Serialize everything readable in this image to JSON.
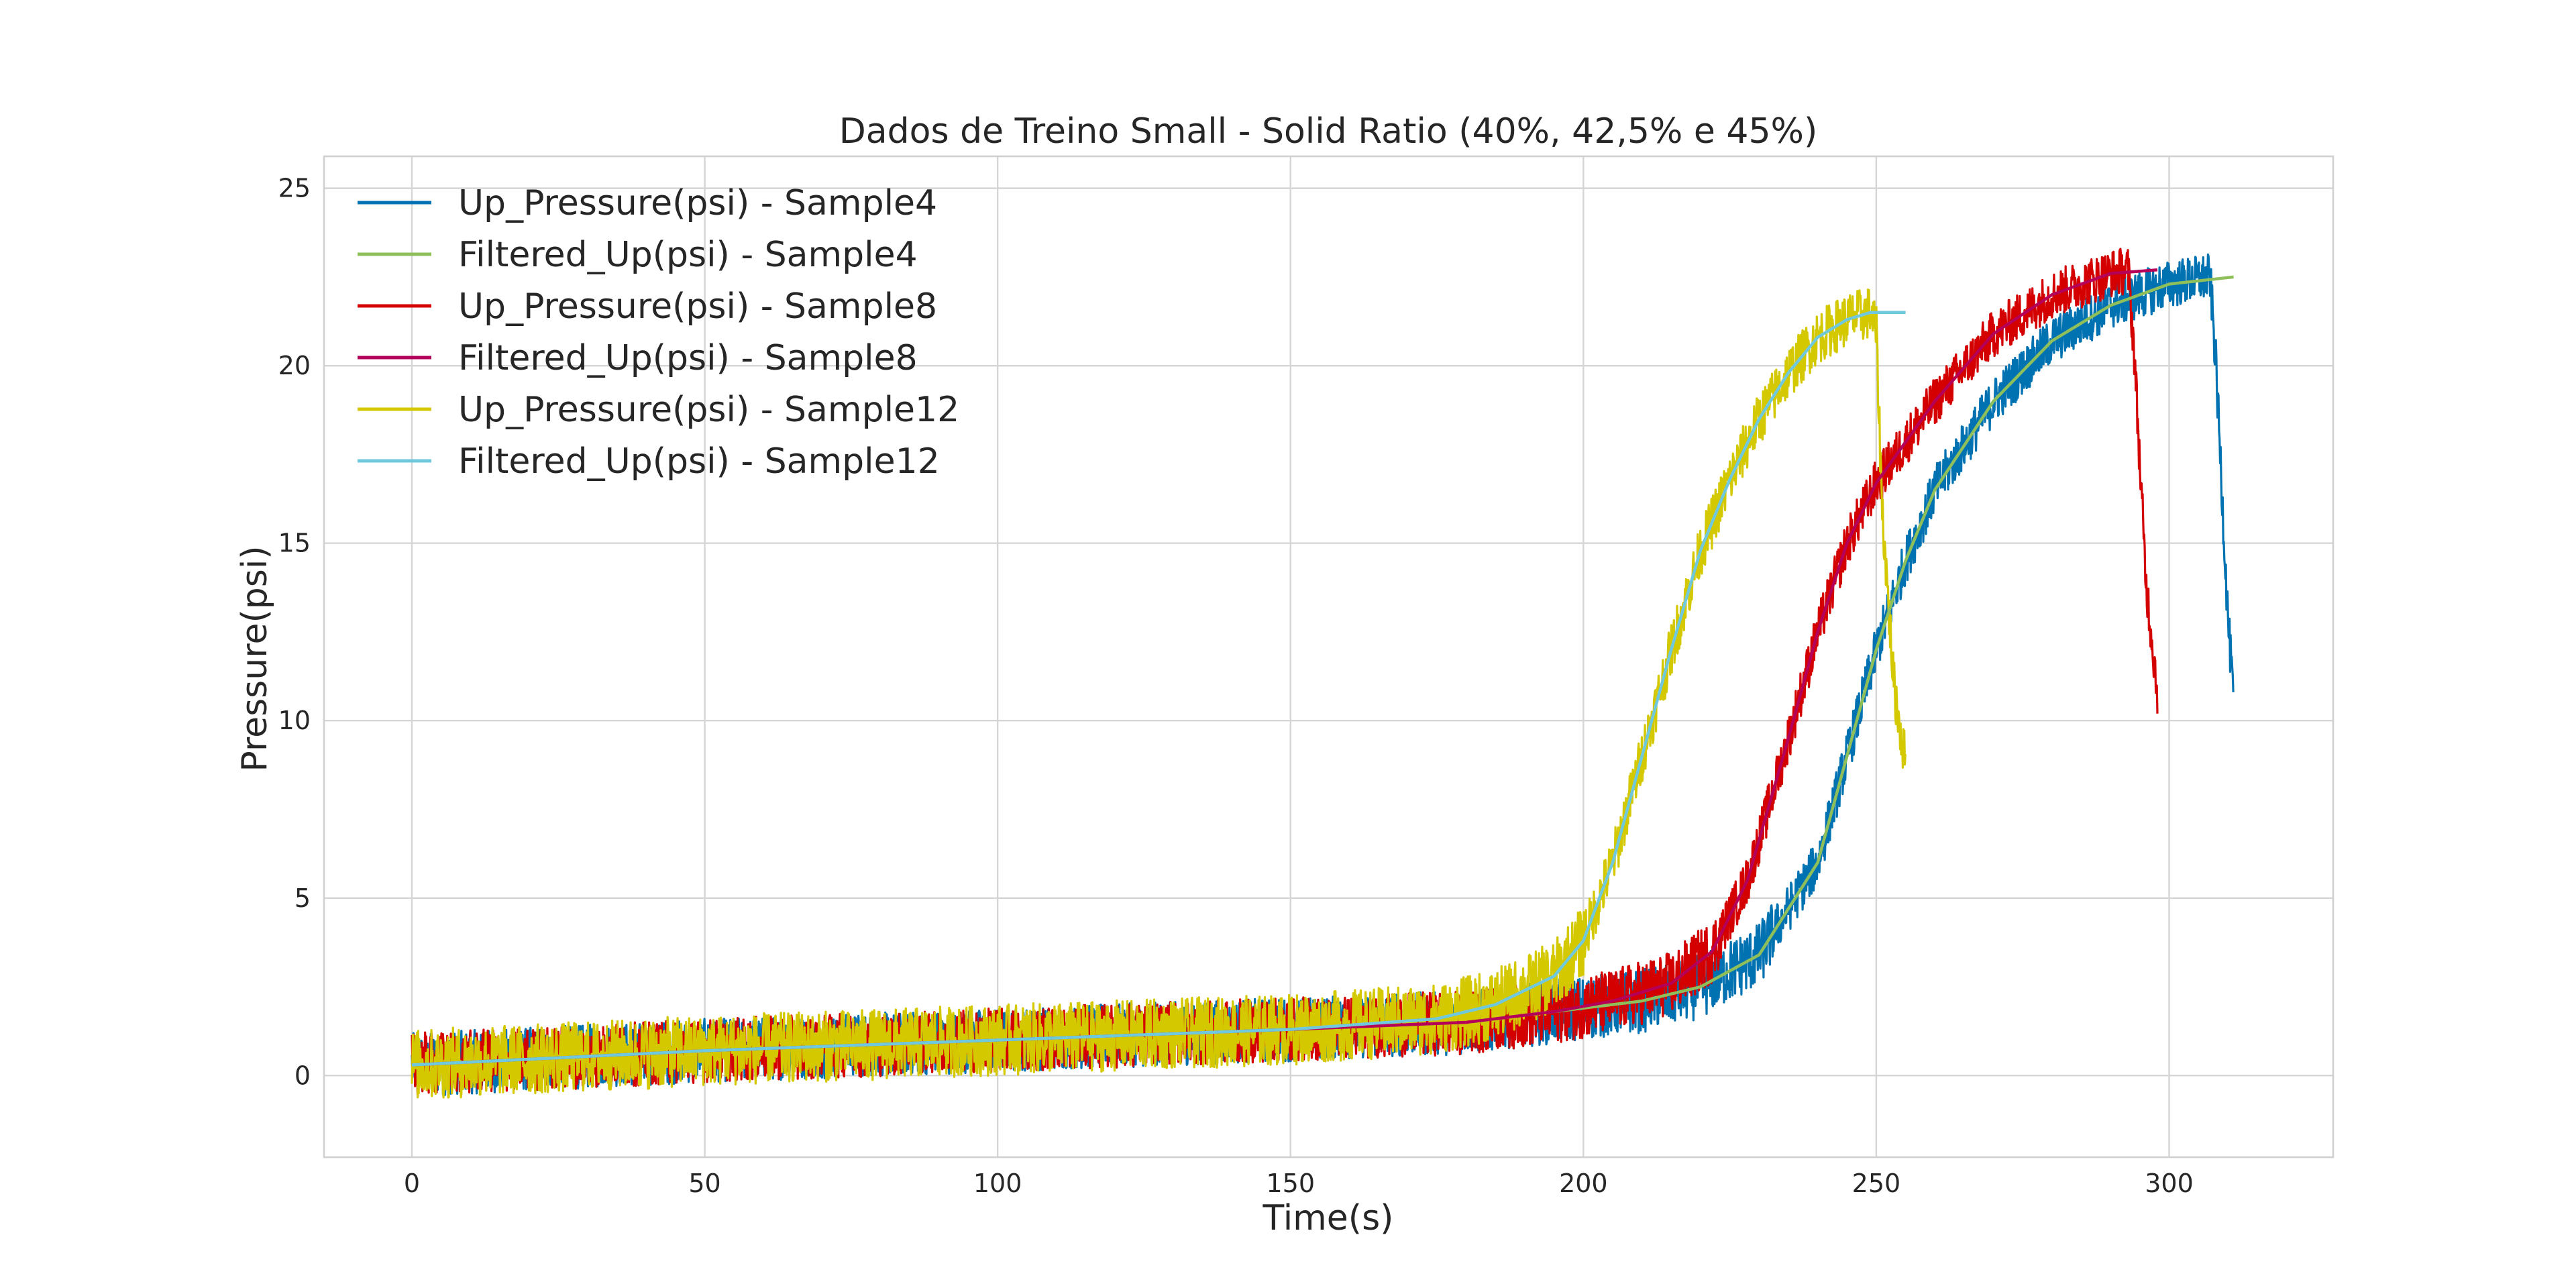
{
  "chart_data": {
    "type": "line",
    "title": "Dados de Treino Small - Solid Ratio (40%, 42,5% e 45%)",
    "xlabel": "Time(s)",
    "ylabel": "Pressure(psi)",
    "xlim": [
      -15,
      328
    ],
    "ylim": [
      -2.3,
      25.9
    ],
    "xticks": [
      0,
      50,
      100,
      150,
      200,
      250,
      300
    ],
    "yticks": [
      0,
      5,
      10,
      15,
      20,
      25
    ],
    "grid": true,
    "legend_position": "top-left",
    "series": [
      {
        "name": "Up_Pressure(psi) - Sample4",
        "color": "#0072b2",
        "kind": "noisy",
        "noise": 0.9,
        "x": [
          0,
          50,
          100,
          150,
          180,
          195,
          210,
          220,
          230,
          240,
          245,
          250,
          255,
          260,
          270,
          280,
          290,
          300,
          307,
          308,
          310,
          311
        ],
        "y": [
          0.3,
          0.7,
          1.0,
          1.3,
          1.5,
          1.8,
          2.1,
          2.5,
          3.4,
          6.0,
          9.0,
          12.0,
          14.5,
          16.5,
          19.0,
          20.7,
          21.7,
          22.3,
          22.5,
          20.0,
          13.0,
          10.5
        ]
      },
      {
        "name": "Filtered_Up(psi) - Sample4",
        "color": "#8fbf5a",
        "kind": "smooth",
        "x": [
          0,
          50,
          100,
          150,
          180,
          195,
          210,
          220,
          230,
          240,
          245,
          250,
          255,
          260,
          270,
          280,
          290,
          300,
          311
        ],
        "y": [
          0.3,
          0.7,
          1.0,
          1.3,
          1.5,
          1.8,
          2.1,
          2.5,
          3.4,
          6.0,
          9.0,
          12.0,
          14.5,
          16.5,
          19.0,
          20.7,
          21.7,
          22.3,
          22.5
        ]
      },
      {
        "name": "Up_Pressure(psi) - Sample8",
        "color": "#d40000",
        "kind": "noisy",
        "noise": 0.9,
        "x": [
          0,
          50,
          100,
          150,
          180,
          195,
          205,
          215,
          222,
          228,
          235,
          240,
          245,
          250,
          260,
          270,
          280,
          290,
          293,
          294,
          296,
          298
        ],
        "y": [
          0.3,
          0.7,
          1.0,
          1.3,
          1.5,
          1.8,
          2.1,
          2.6,
          3.5,
          5.5,
          9.5,
          12.5,
          15.0,
          16.7,
          19.0,
          20.9,
          22.0,
          22.6,
          22.7,
          20.5,
          14.0,
          10.8
        ]
      },
      {
        "name": "Filtered_Up(psi) - Sample8",
        "color": "#b5005a",
        "kind": "smooth",
        "x": [
          0,
          50,
          100,
          150,
          180,
          195,
          205,
          215,
          222,
          228,
          235,
          240,
          245,
          250,
          260,
          270,
          280,
          290,
          298
        ],
        "y": [
          0.3,
          0.7,
          1.0,
          1.3,
          1.5,
          1.8,
          2.1,
          2.6,
          3.5,
          5.5,
          9.5,
          12.5,
          15.0,
          16.7,
          19.0,
          20.9,
          22.0,
          22.6,
          22.7
        ]
      },
      {
        "name": "Up_Pressure(psi) - Sample12",
        "color": "#d4c800",
        "kind": "noisy",
        "noise": 1.0,
        "x": [
          0,
          50,
          100,
          150,
          175,
          185,
          195,
          200,
          205,
          210,
          215,
          220,
          225,
          230,
          235,
          240,
          245,
          249,
          250,
          251,
          253,
          255
        ],
        "y": [
          0.3,
          0.7,
          1.0,
          1.3,
          1.6,
          2.0,
          2.8,
          3.8,
          6.0,
          9.0,
          12.0,
          14.8,
          16.8,
          18.5,
          19.8,
          20.8,
          21.3,
          21.5,
          21.0,
          16.0,
          11.0,
          8.8
        ]
      },
      {
        "name": "Filtered_Up(psi) - Sample12",
        "color": "#70c8dc",
        "kind": "smooth",
        "x": [
          0,
          50,
          100,
          150,
          175,
          185,
          195,
          200,
          205,
          210,
          215,
          220,
          225,
          230,
          235,
          240,
          245,
          249,
          255
        ],
        "y": [
          0.3,
          0.7,
          1.0,
          1.3,
          1.6,
          2.0,
          2.8,
          3.8,
          6.0,
          9.0,
          12.0,
          14.8,
          16.8,
          18.5,
          19.8,
          20.8,
          21.3,
          21.5,
          21.5
        ]
      }
    ]
  }
}
